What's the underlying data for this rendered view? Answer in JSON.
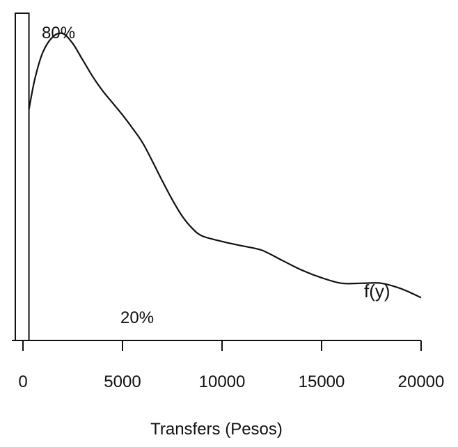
{
  "chart_data": {
    "type": "area",
    "xlabel": "Transfers (Pesos)",
    "ylabel": "",
    "xlim": [
      0,
      20000
    ],
    "xticks": [
      "0",
      "5000",
      "10000",
      "15000",
      "20000"
    ],
    "xtick_values": [
      0,
      5000,
      10000,
      15000,
      20000
    ],
    "grid": false,
    "point_mass": {
      "x_from": 0,
      "x_to": 300,
      "label": "80%"
    },
    "density": {
      "name": "f(y)",
      "label": "f(y)",
      "mass_label": "20%",
      "x": [
        300,
        600,
        1000,
        1500,
        2000,
        2500,
        3000,
        3500,
        4000,
        4500,
        5000,
        5500,
        6000,
        6500,
        7000,
        7500,
        8000,
        8500,
        9000,
        10000,
        11000,
        12000,
        13000,
        14000,
        15000,
        16000,
        17000,
        18000,
        19000,
        20000
      ],
      "y": [
        0.21,
        0.238,
        0.262,
        0.276,
        0.279,
        0.27,
        0.255,
        0.24,
        0.227,
        0.216,
        0.205,
        0.193,
        0.18,
        0.163,
        0.145,
        0.128,
        0.113,
        0.102,
        0.095,
        0.09,
        0.086,
        0.082,
        0.073,
        0.064,
        0.057,
        0.052,
        0.052,
        0.052,
        0.047,
        0.039
      ]
    }
  }
}
